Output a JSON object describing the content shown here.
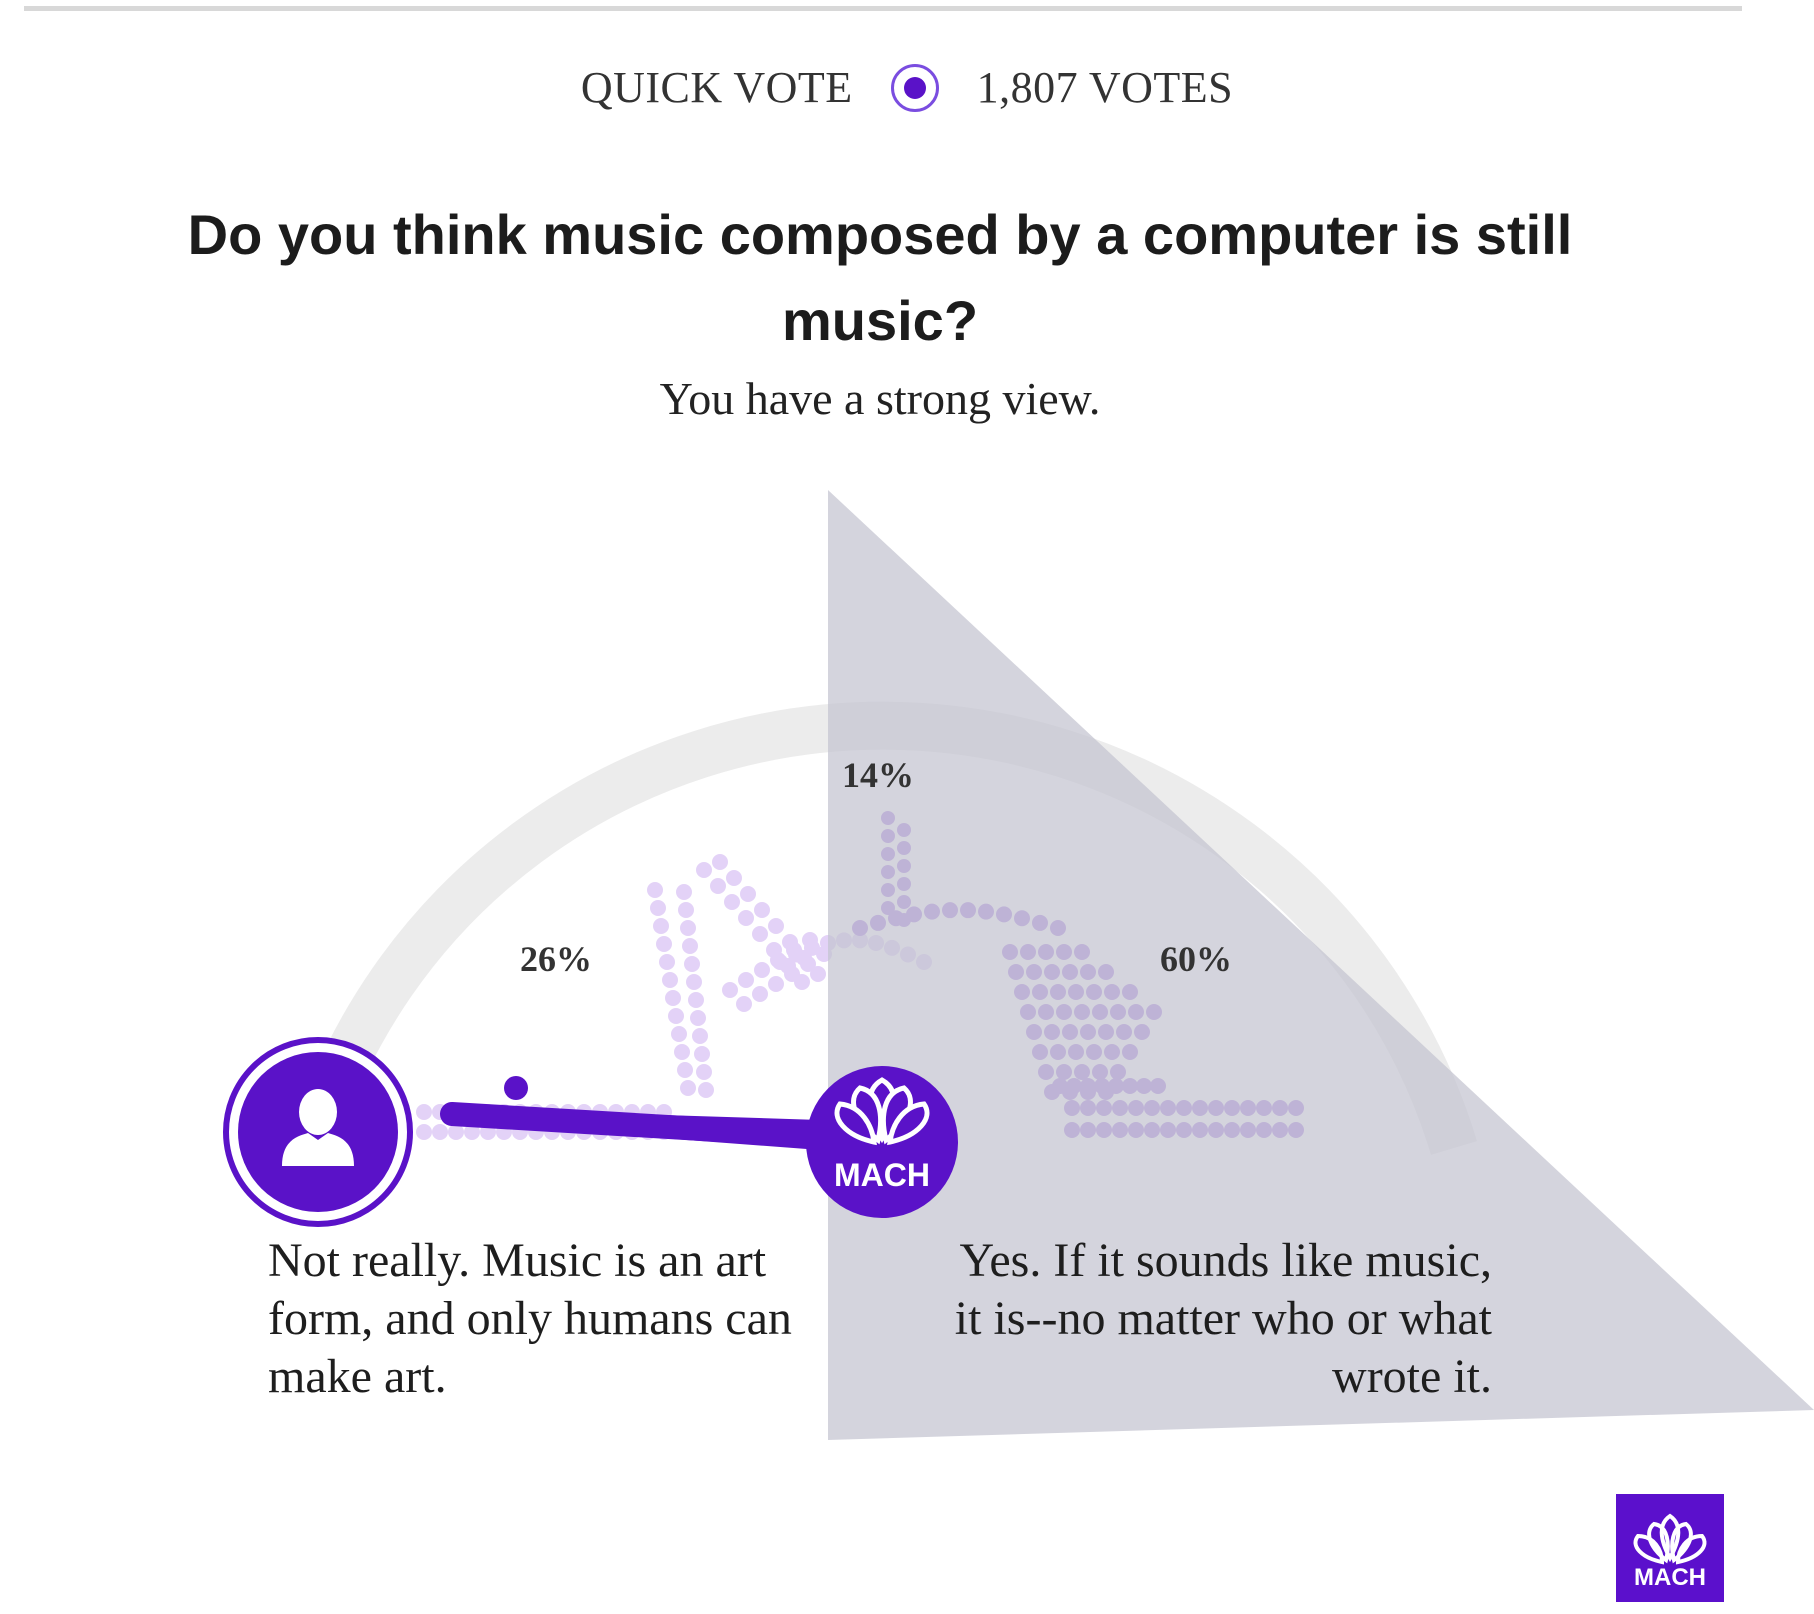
{
  "header": {
    "left_label": "QUICK VOTE",
    "right_label": "1,807 VOTES"
  },
  "question": "Do you think music composed by a computer is still music?",
  "verdict": "You have a strong view.",
  "gauge": {
    "percent_left": "26%",
    "percent_middle": "14%",
    "percent_right": "60%"
  },
  "answers": {
    "left": "Not really. Music is an art form, and only humans can make art.",
    "right": "Yes. If it sounds like music, it is--no matter who or what wrote it."
  },
  "badges": {
    "user_icon": "person-icon",
    "mach_label": "MACH",
    "corner_label": "MACH"
  },
  "colors": {
    "primary": "#5a12c8",
    "dots_light": "#e3d2f7",
    "dots_mid": "#b08ae6",
    "arc": "#ececec",
    "overlay": "#c4c4d0"
  }
}
